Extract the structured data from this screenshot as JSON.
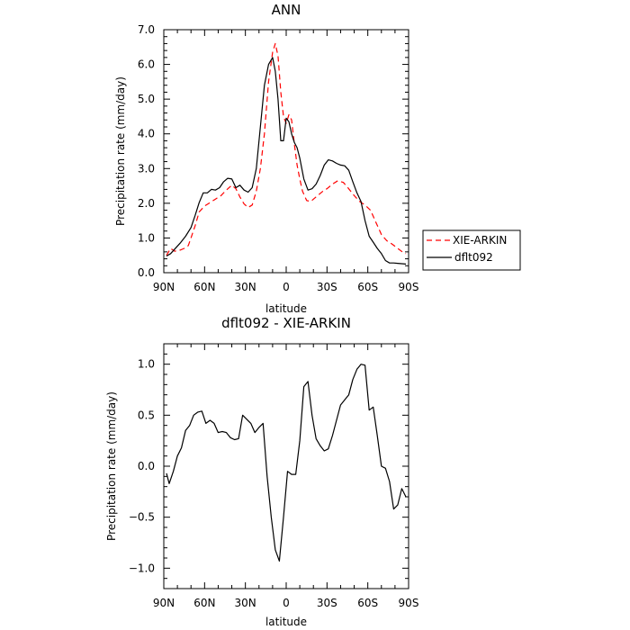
{
  "chart_data": [
    {
      "type": "line",
      "title": "ANN",
      "xlabel": "latitude",
      "ylabel": "Precipitation rate (mm/day)",
      "xlim": [
        -90,
        90
      ],
      "ylim": [
        0,
        7
      ],
      "xticks": [
        -90,
        -60,
        -30,
        0,
        30,
        60,
        90
      ],
      "xtick_labels": [
        "90N",
        "60N",
        "30N",
        "0",
        "30S",
        "60S",
        "90S"
      ],
      "yticks": [
        0,
        1,
        2,
        3,
        4,
        5,
        6,
        7
      ],
      "ytick_labels": [
        "0.0",
        "1.0",
        "2.0",
        "3.0",
        "4.0",
        "5.0",
        "6.0",
        "7.0"
      ],
      "legend_position": "right",
      "series": [
        {
          "name": "XIE-ARKIN",
          "color": "#ff0000",
          "dashed": true,
          "x": [
            -88,
            -85,
            -82,
            -78,
            -75,
            -72,
            -70,
            -67,
            -64,
            -60,
            -56,
            -52,
            -48,
            -44,
            -40,
            -37,
            -34,
            -31,
            -28,
            -25,
            -22,
            -19,
            -16,
            -13,
            -10,
            -8,
            -6,
            -4,
            -2,
            0,
            2,
            4,
            6,
            8,
            10,
            12,
            15,
            18,
            21,
            24,
            27,
            30,
            34,
            38,
            42,
            46,
            50,
            54,
            58,
            62,
            66,
            70,
            74,
            78,
            82,
            86,
            88
          ],
          "y": [
            0.5,
            0.7,
            0.62,
            0.65,
            0.7,
            0.78,
            1.0,
            1.35,
            1.75,
            1.92,
            2.02,
            2.12,
            2.22,
            2.38,
            2.52,
            2.42,
            2.18,
            1.98,
            1.88,
            1.95,
            2.35,
            3.0,
            4.0,
            5.5,
            6.35,
            6.6,
            6.25,
            5.2,
            4.5,
            4.3,
            4.55,
            4.4,
            3.7,
            3.1,
            2.7,
            2.35,
            2.08,
            2.05,
            2.15,
            2.25,
            2.35,
            2.42,
            2.55,
            2.65,
            2.6,
            2.42,
            2.22,
            2.05,
            1.95,
            1.8,
            1.45,
            1.1,
            0.92,
            0.82,
            0.7,
            0.58,
            0.55
          ]
        },
        {
          "name": "dflt092",
          "color": "#000000",
          "dashed": false,
          "x": [
            -88,
            -85,
            -82,
            -78,
            -74,
            -70,
            -67,
            -64,
            -61,
            -58,
            -55,
            -52,
            -49,
            -46,
            -43,
            -40,
            -37,
            -34,
            -31,
            -28,
            -25,
            -22,
            -19,
            -16,
            -13,
            -10,
            -8,
            -6,
            -4,
            -2,
            0,
            2,
            4,
            6,
            8,
            10,
            13,
            16,
            19,
            22,
            25,
            28,
            31,
            34,
            37,
            40,
            43,
            46,
            49,
            52,
            55,
            58,
            61,
            64,
            67,
            70,
            73,
            76,
            79,
            82,
            85,
            88
          ],
          "y": [
            0.48,
            0.55,
            0.68,
            0.85,
            1.05,
            1.3,
            1.65,
            2.02,
            2.3,
            2.3,
            2.4,
            2.38,
            2.45,
            2.62,
            2.72,
            2.7,
            2.45,
            2.52,
            2.38,
            2.32,
            2.45,
            3.0,
            4.2,
            5.4,
            6.0,
            6.2,
            5.8,
            5.0,
            3.8,
            3.8,
            4.45,
            4.35,
            4.0,
            3.75,
            3.6,
            3.3,
            2.7,
            2.38,
            2.42,
            2.55,
            2.8,
            3.1,
            3.25,
            3.22,
            3.15,
            3.1,
            3.08,
            2.95,
            2.62,
            2.3,
            2.05,
            1.5,
            1.05,
            0.88,
            0.7,
            0.55,
            0.35,
            0.28,
            0.28,
            0.27,
            0.26,
            0.25
          ]
        }
      ]
    },
    {
      "type": "line",
      "title": "dflt092 - XIE-ARKIN",
      "xlabel": "latitude",
      "ylabel": "Precipitation rate (mm/day)",
      "xlim": [
        -90,
        90
      ],
      "ylim": [
        -1.2,
        1.2
      ],
      "xticks": [
        -90,
        -60,
        -30,
        0,
        30,
        60,
        90
      ],
      "xtick_labels": [
        "90N",
        "60N",
        "30N",
        "0",
        "30S",
        "60S",
        "90S"
      ],
      "yticks": [
        -1.0,
        -0.5,
        0.0,
        0.5,
        1.0
      ],
      "ytick_labels": [
        "−1.0",
        "−0.5",
        "0.0",
        "0.5",
        "1.0"
      ],
      "series": [
        {
          "color": "#000000",
          "x": [
            -88,
            -86,
            -83,
            -80,
            -77,
            -74,
            -71,
            -68,
            -65,
            -62,
            -59,
            -56,
            -53,
            -50,
            -47,
            -44,
            -41,
            -38,
            -35,
            -32,
            -29,
            -26,
            -23,
            -20,
            -17,
            -14,
            -11,
            -8,
            -5,
            -2,
            1,
            4,
            7,
            10,
            13,
            16,
            19,
            22,
            25,
            28,
            31,
            34,
            37,
            40,
            43,
            46,
            49,
            52,
            55,
            58,
            61,
            64,
            67,
            70,
            73,
            76,
            79,
            82,
            85,
            88
          ],
          "y": [
            -0.07,
            -0.17,
            -0.05,
            0.1,
            0.18,
            0.35,
            0.4,
            0.5,
            0.53,
            0.54,
            0.42,
            0.45,
            0.42,
            0.33,
            0.34,
            0.33,
            0.28,
            0.26,
            0.27,
            0.5,
            0.46,
            0.42,
            0.33,
            0.38,
            0.42,
            -0.1,
            -0.5,
            -0.82,
            -0.93,
            -0.5,
            -0.05,
            -0.08,
            -0.08,
            0.25,
            0.78,
            0.83,
            0.5,
            0.27,
            0.2,
            0.15,
            0.17,
            0.3,
            0.45,
            0.6,
            0.65,
            0.7,
            0.85,
            0.95,
            1.0,
            0.99,
            0.55,
            0.58,
            0.3,
            0.0,
            -0.02,
            -0.15,
            -0.42,
            -0.38,
            -0.22,
            -0.3
          ]
        }
      ]
    }
  ]
}
